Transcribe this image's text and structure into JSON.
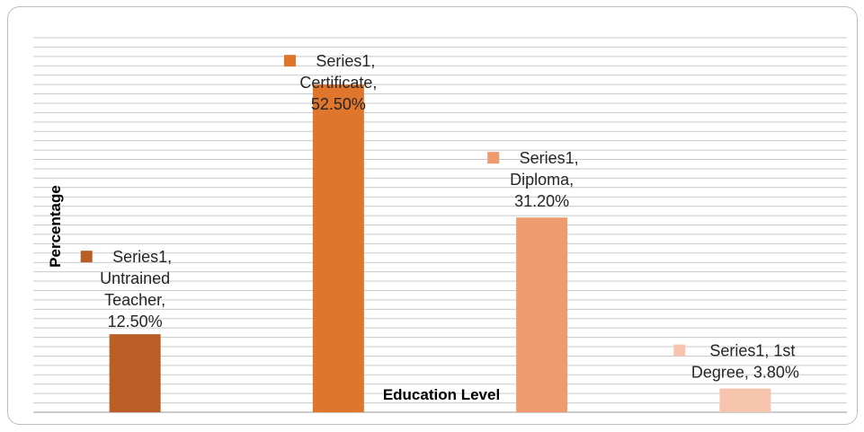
{
  "chart_data": {
    "type": "bar",
    "xlabel": "Education Level",
    "ylabel": "Percentage",
    "ylim": [
      0,
      60
    ],
    "grid": true,
    "categories": [
      "Untrained Teacher",
      "Certificate",
      "Diploma",
      "1st Degree"
    ],
    "series": [
      {
        "name": "Series1",
        "values": [
          12.5,
          52.5,
          31.2,
          3.8
        ]
      }
    ],
    "bar_colors": [
      "#B95E25",
      "#E0762C",
      "#EE9B70",
      "#F7C5AD"
    ],
    "data_labels": [
      [
        "Series1,",
        "Untrained",
        "Teacher,",
        "12.50%"
      ],
      [
        "Series1,",
        "Certificate,",
        "52.50%"
      ],
      [
        "Series1,",
        "Diploma,",
        "31.20%"
      ],
      [
        "Series1, 1st",
        "Degree, 3.80%"
      ]
    ]
  }
}
